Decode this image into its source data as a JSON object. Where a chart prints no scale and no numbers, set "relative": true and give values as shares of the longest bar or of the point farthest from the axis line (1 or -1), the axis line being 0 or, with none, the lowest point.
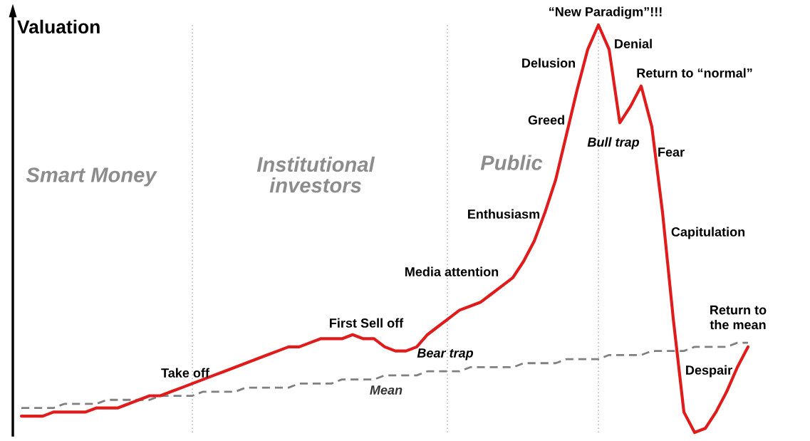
{
  "chart_data": {
    "type": "line",
    "relative": true,
    "ylabel": "Valuation",
    "categories": [
      null,
      null,
      null,
      null,
      null,
      null,
      null,
      null,
      null,
      null,
      null,
      null,
      null,
      null,
      null,
      null,
      null,
      null,
      null,
      null,
      null,
      null,
      null,
      null,
      null,
      null,
      null,
      null,
      null,
      null,
      null,
      null,
      null,
      null,
      null,
      null,
      null,
      null,
      null,
      null,
      null,
      null,
      null,
      null,
      null,
      null,
      null,
      null,
      null,
      null,
      null,
      null,
      null,
      null,
      null,
      null,
      null,
      null,
      null,
      null,
      null,
      null,
      null,
      null,
      null,
      null,
      null,
      null,
      null
    ],
    "series": [
      {
        "color": "#e01b1b",
        "values": [
          0.04,
          0.04,
          0.04,
          0.05,
          0.05,
          0.05,
          0.05,
          0.06,
          0.06,
          0.06,
          0.07,
          0.08,
          0.09,
          0.09,
          0.1,
          0.11,
          0.12,
          0.13,
          0.14,
          0.15,
          0.16,
          0.17,
          0.18,
          0.19,
          0.2,
          0.21,
          0.21,
          0.22,
          0.23,
          0.23,
          0.23,
          0.24,
          0.23,
          0.23,
          0.21,
          0.2,
          0.2,
          0.21,
          0.24,
          0.26,
          0.28,
          0.3,
          0.31,
          0.32,
          0.34,
          0.36,
          0.38,
          0.42,
          0.47,
          0.54,
          0.62,
          0.73,
          0.84,
          0.94,
          1,
          0.94,
          0.76,
          0.8,
          0.85,
          0.75,
          0.54,
          0.28,
          0.05,
          0,
          0.01,
          0.05,
          0.1,
          0.16,
          0.21
        ]
      },
      {
        "name": "Mean",
        "color": "#808080",
        "line_style": "dashed",
        "values": [
          0.06,
          0.06,
          0.06,
          0.06,
          0.07,
          0.07,
          0.07,
          0.07,
          0.08,
          0.08,
          0.08,
          0.08,
          0.08,
          0.09,
          0.09,
          0.09,
          0.09,
          0.1,
          0.1,
          0.1,
          0.1,
          0.11,
          0.11,
          0.11,
          0.11,
          0.11,
          0.12,
          0.12,
          0.12,
          0.12,
          0.13,
          0.13,
          0.13,
          0.13,
          0.14,
          0.14,
          0.14,
          0.14,
          0.15,
          0.15,
          0.15,
          0.15,
          0.16,
          0.16,
          0.16,
          0.16,
          0.16,
          0.17,
          0.17,
          0.17,
          0.17,
          0.18,
          0.18,
          0.18,
          0.18,
          0.19,
          0.19,
          0.19,
          0.19,
          0.2,
          0.2,
          0.2,
          0.2,
          0.21,
          0.21,
          0.21,
          0.21,
          0.22,
          0.22
        ]
      }
    ],
    "annotations": [
      "“New Paradigm”!!!",
      "Denial",
      "Delusion",
      "Return to “normal”",
      "Greed",
      "Bull trap",
      "Fear",
      "Enthusiasm",
      "Capitulation",
      "Media attention",
      "Return to\nthe mean",
      "First Sell off",
      "Bear trap",
      "Take off",
      "Despair",
      "Smart Money",
      "Institutional\ninvestors",
      "Public"
    ],
    "grid": "x",
    "legend": false
  }
}
